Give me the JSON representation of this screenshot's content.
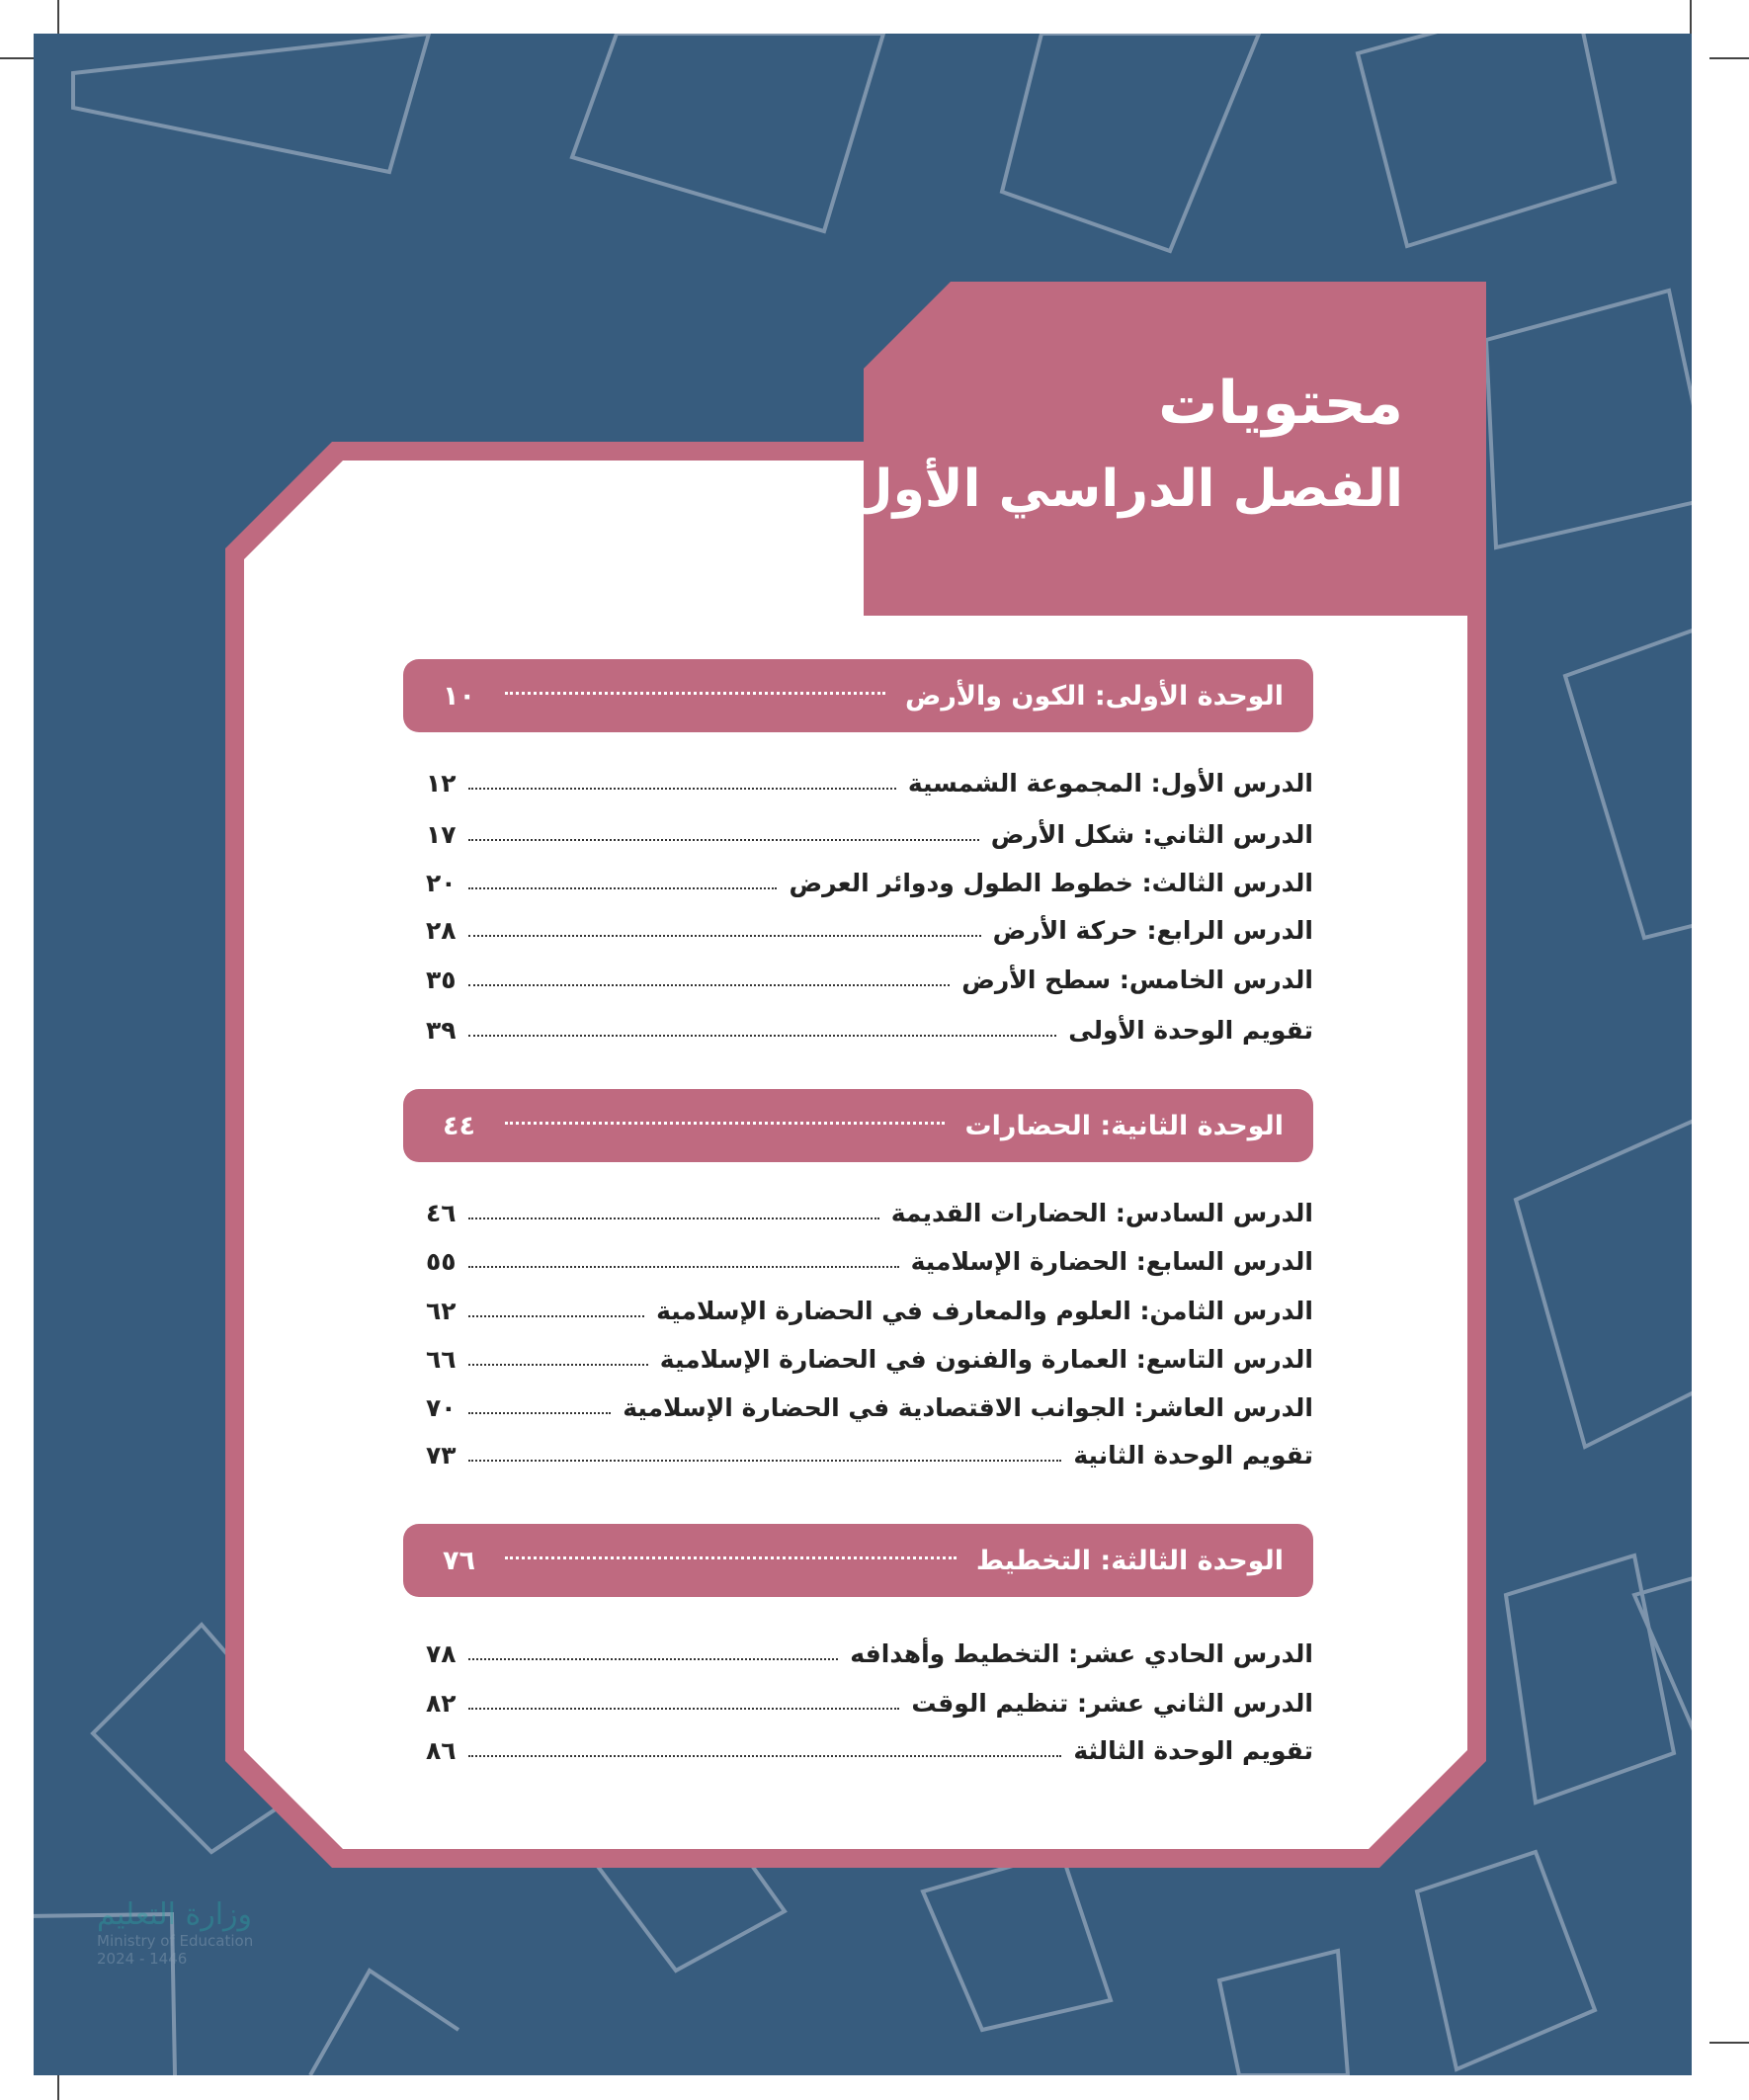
{
  "colors": {
    "background": "#375c7e",
    "accent": "#bf6a80",
    "card": "#ffffff"
  },
  "header": {
    "title": "محتويات",
    "subtitle": "الفصل الدراسي الأول"
  },
  "units": [
    {
      "title": "الوحدة الأولى: الكون والأرض",
      "page": "١٠",
      "lessons": [
        {
          "title": "الدرس الأول: المجموعة الشمسية",
          "page": "١٢"
        },
        {
          "title": "الدرس الثاني: شكل الأرض",
          "page": "١٧"
        },
        {
          "title": "الدرس الثالث: خطوط الطول ودوائر العرض",
          "page": "٢٠"
        },
        {
          "title": "الدرس الرابع: حركة الأرض",
          "page": "٢٨"
        },
        {
          "title": "الدرس الخامس: سطح الأرض",
          "page": "٣٥"
        },
        {
          "title": "تقويم الوحدة الأولى",
          "page": "٣٩"
        }
      ]
    },
    {
      "title": "الوحدة الثانية: الحضارات",
      "page": "٤٤",
      "lessons": [
        {
          "title": "الدرس السادس: الحضارات القديمة",
          "page": "٤٦"
        },
        {
          "title": "الدرس السابع: الحضارة الإسلامية",
          "page": "٥٥"
        },
        {
          "title": "الدرس الثامن: العلوم والمعارف في الحضارة الإسلامية",
          "page": "٦٢"
        },
        {
          "title": "الدرس التاسع: العمارة والفنون في الحضارة الإسلامية",
          "page": "٦٦"
        },
        {
          "title": "الدرس العاشر: الجوانب الاقتصادية في الحضارة الإسلامية",
          "page": "٧٠"
        },
        {
          "title": "تقويم الوحدة الثانية",
          "page": "٧٣"
        }
      ]
    },
    {
      "title": "الوحدة الثالثة: التخطيط",
      "page": "٧٦",
      "lessons": [
        {
          "title": "الدرس الحادي عشر: التخطيط وأهدافه",
          "page": "٧٨"
        },
        {
          "title": "الدرس الثاني عشر: تنظيم الوقت",
          "page": "٨٢"
        },
        {
          "title": "تقويم الوحدة الثالثة",
          "page": "٨٦"
        }
      ]
    }
  ],
  "watermark": {
    "arabic": "وزارة التعليم",
    "english": "Ministry of Education",
    "year": "2024 - 1446"
  }
}
